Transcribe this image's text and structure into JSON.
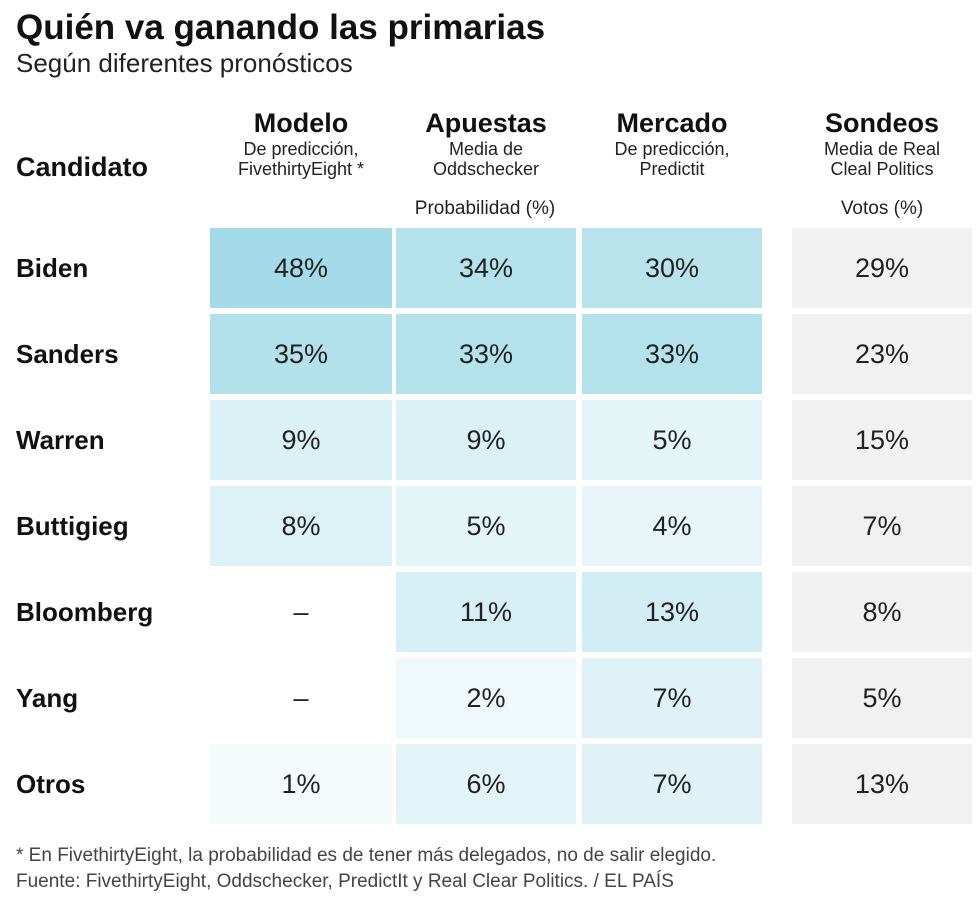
{
  "title": "Quién va ganando las primarias",
  "subtitle": "Según diferentes pronósticos",
  "chart_data": {
    "type": "table",
    "row_header": "Candidato",
    "columns": [
      {
        "name": "Modelo",
        "desc1": "De predicción,",
        "desc2": "FivethirtyEight *"
      },
      {
        "name": "Apuestas",
        "desc1": "Media de",
        "desc2": "Oddschecker"
      },
      {
        "name": "Mercado",
        "desc1": "De predicción,",
        "desc2": "Predictit"
      },
      {
        "name": "Sondeos",
        "desc1": "Media de Real",
        "desc2": "Cleal Politics"
      }
    ],
    "unit_probability": "Probabilidad (%)",
    "unit_votes": "Votos (%)",
    "rows": [
      {
        "candidate": "Biden",
        "values": [
          "48%",
          "34%",
          "30%",
          "29%"
        ],
        "numeric": [
          48,
          34,
          30,
          29
        ]
      },
      {
        "candidate": "Sanders",
        "values": [
          "35%",
          "33%",
          "33%",
          "23%"
        ],
        "numeric": [
          35,
          33,
          33,
          23
        ]
      },
      {
        "candidate": "Warren",
        "values": [
          "9%",
          "9%",
          "5%",
          "15%"
        ],
        "numeric": [
          9,
          9,
          5,
          15
        ]
      },
      {
        "candidate": "Buttigieg",
        "values": [
          "8%",
          "5%",
          "4%",
          "7%"
        ],
        "numeric": [
          8,
          5,
          4,
          7
        ]
      },
      {
        "candidate": "Bloomberg",
        "values": [
          "–",
          "11%",
          "13%",
          "8%"
        ],
        "numeric": [
          null,
          11,
          13,
          8
        ]
      },
      {
        "candidate": "Yang",
        "values": [
          "–",
          "2%",
          "7%",
          "5%"
        ],
        "numeric": [
          null,
          2,
          7,
          5
        ]
      },
      {
        "candidate": "Otros",
        "values": [
          "1%",
          "6%",
          "7%",
          "13%"
        ],
        "numeric": [
          1,
          6,
          7,
          13
        ]
      }
    ],
    "colors": {
      "scale_high": "#a3dbe8",
      "scale_low": "#ffffff",
      "sondeos_bg": "#f1f1f1"
    }
  },
  "footnote_1": "* En FivethirtyEight, la probabilidad es de tener más delegados, no de salir elegido.",
  "footnote_2": "Fuente: FivethirtyEight, Oddschecker, PredictIt y Real Clear Politics.  / EL PAÍS"
}
